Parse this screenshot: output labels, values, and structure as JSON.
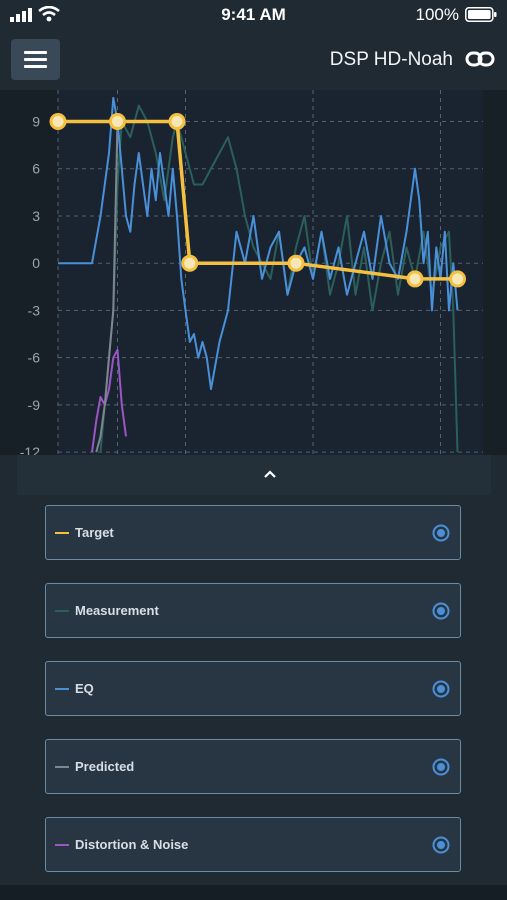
{
  "status_bar": {
    "time": "9:41 AM",
    "battery": "100%"
  },
  "header": {
    "device_name": "DSP HD-Noah"
  },
  "chart_data": {
    "type": "line",
    "y_ticks": [
      9,
      6,
      3,
      0,
      -3,
      -6,
      -9,
      -12
    ],
    "ylim": [
      -12.5,
      11
    ],
    "xlim": [
      0,
      100
    ],
    "grid": true,
    "series": [
      {
        "name": "Target",
        "color": "#f5c040",
        "x": [
          0,
          14,
          28,
          31,
          56,
          84,
          94
        ],
        "y": [
          9,
          9,
          9,
          0,
          0,
          -1,
          -1
        ],
        "markers": true
      },
      {
        "name": "Measurement",
        "color": "#2b5f5a",
        "x": [
          10,
          12,
          13,
          14,
          15,
          17,
          19,
          21,
          23,
          25,
          27,
          28,
          30,
          32,
          34,
          36,
          38,
          40,
          42,
          44,
          46,
          48,
          50,
          52,
          54,
          56,
          58,
          60,
          62,
          64,
          66,
          68,
          70,
          72,
          74,
          76,
          78,
          80,
          82,
          84,
          86,
          88,
          90,
          92,
          93,
          94
        ],
        "y": [
          -12,
          -6,
          -3,
          5,
          9,
          8,
          10,
          9,
          7,
          4,
          8,
          9,
          7,
          5,
          5,
          6,
          7,
          8,
          6,
          3,
          1,
          0,
          -1,
          2,
          -2,
          1,
          3,
          -1,
          2,
          -2,
          0,
          3,
          -2,
          1,
          -3,
          0,
          2,
          -2,
          1,
          -1,
          2,
          -2,
          1,
          2,
          -3,
          -12
        ]
      },
      {
        "name": "EQ",
        "color": "#4a90d9",
        "x": [
          0,
          4,
          8,
          10,
          12,
          13,
          14,
          15,
          16,
          17,
          18,
          19,
          20,
          21,
          22,
          23,
          24,
          25,
          26,
          27,
          28,
          29,
          30,
          31,
          32,
          33,
          34,
          35,
          36,
          38,
          40,
          42,
          44,
          46,
          48,
          50,
          52,
          54,
          56,
          58,
          60,
          62,
          64,
          66,
          68,
          70,
          72,
          74,
          76,
          78,
          80,
          82,
          84,
          85,
          86,
          87,
          88,
          89,
          90,
          91,
          92,
          93,
          94
        ],
        "y": [
          0,
          0,
          0,
          3,
          7,
          10.5,
          9,
          6,
          3,
          2,
          5,
          7,
          5,
          3,
          6,
          4,
          7,
          5,
          3,
          6,
          3,
          -1,
          -3,
          -5,
          -4.5,
          -6,
          -5,
          -6,
          -8,
          -5,
          -3,
          2,
          0,
          3,
          -1,
          1,
          2,
          -2,
          0,
          1,
          -1,
          2,
          -1,
          1,
          -2,
          0,
          2,
          -1,
          3,
          0,
          -1,
          2,
          6,
          4,
          0,
          2,
          -3,
          1,
          -1,
          2,
          -3,
          0,
          -3
        ]
      },
      {
        "name": "Predicted",
        "color": "#7d8790",
        "x": [
          9,
          10,
          11,
          12,
          13,
          14
        ],
        "y": [
          -12,
          -11,
          -9,
          -6,
          -3,
          9
        ]
      },
      {
        "name": "Distortion & Noise",
        "color": "#9a56c4",
        "x": [
          8,
          9,
          10,
          11,
          12,
          13,
          14,
          15,
          16
        ],
        "y": [
          -12,
          -10,
          -8.5,
          -9,
          -8,
          -6,
          -5.5,
          -9,
          -11
        ]
      }
    ]
  },
  "panel": {
    "legend": [
      {
        "label": "Target",
        "color": "#f5c040",
        "selected": true
      },
      {
        "label": "Measurement",
        "color": "#2b5f5a",
        "selected": true
      },
      {
        "label": "EQ",
        "color": "#4a90d9",
        "selected": true
      },
      {
        "label": "Predicted",
        "color": "#7d8790",
        "selected": true
      },
      {
        "label": "Distortion & Noise",
        "color": "#9a56c4",
        "selected": true
      }
    ]
  }
}
